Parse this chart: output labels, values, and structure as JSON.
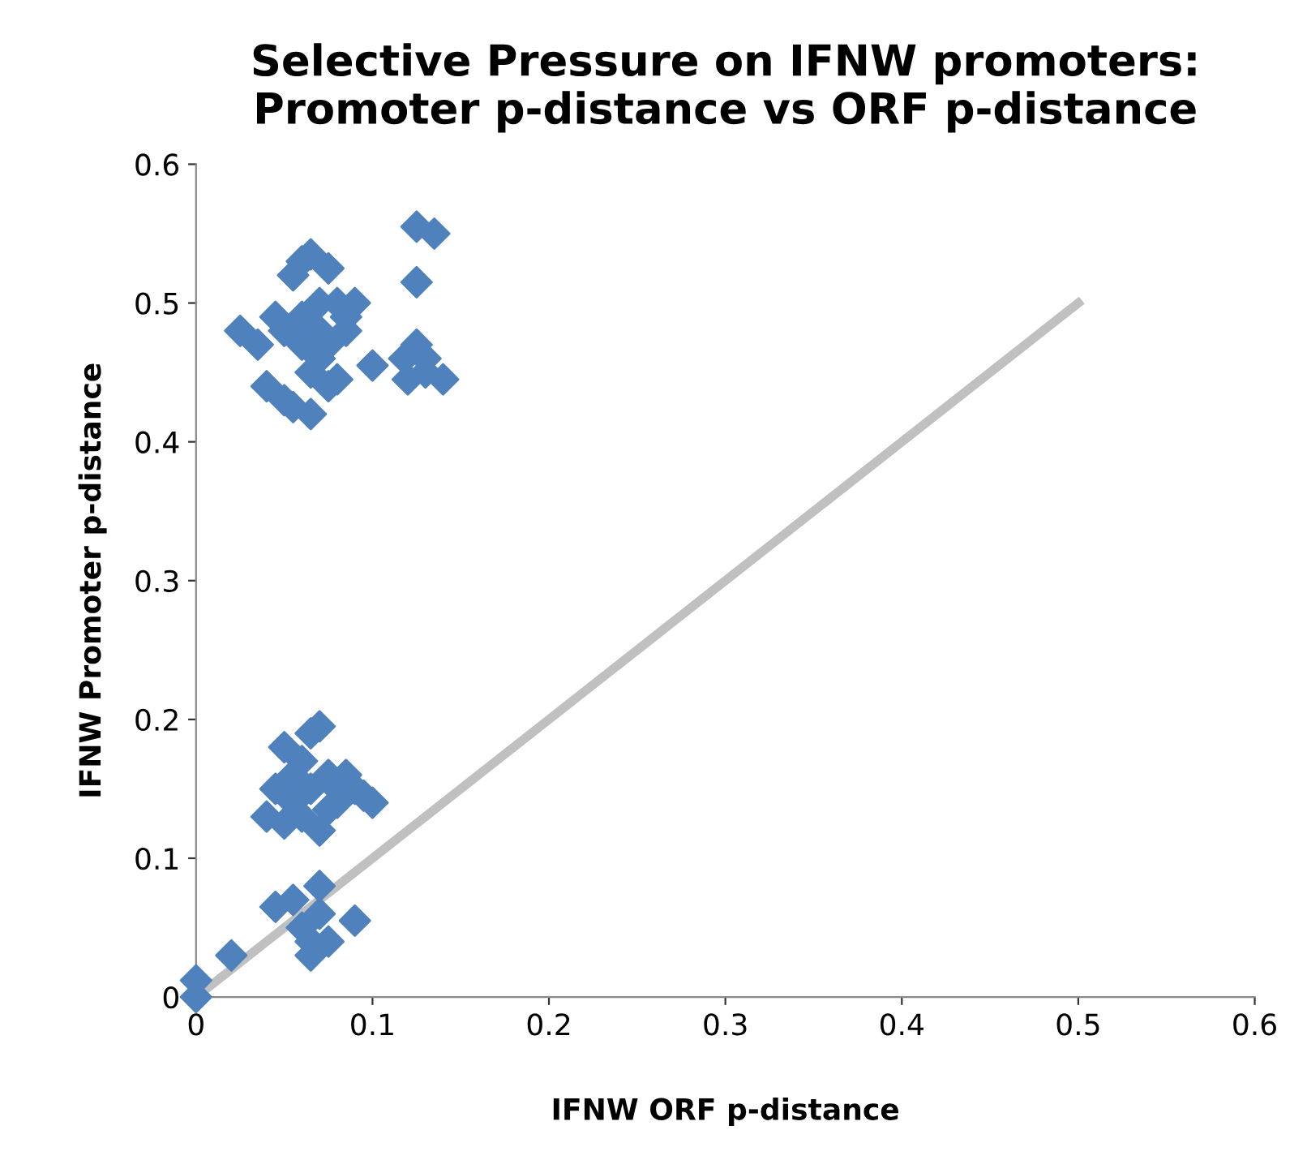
{
  "chart_data": {
    "type": "scatter",
    "title": "Selective Pressure on IFNW promoters:\nPromoter p-distance vs ORF p-distance",
    "xlabel": "IFNW ORF p-distance",
    "ylabel": "IFNW Promoter p-distance",
    "xlim": [
      0,
      0.6
    ],
    "ylim": [
      0,
      0.6
    ],
    "xticks": [
      {
        "value": 0,
        "label": "0"
      },
      0.1,
      0.2,
      0.3,
      0.4,
      0.5,
      0.6
    ],
    "yticks": [
      {
        "value": 0,
        "label": "0"
      },
      0.1,
      0.2,
      0.3,
      0.4,
      0.5,
      0.6
    ],
    "grid": false,
    "legend": false,
    "marker": "diamond",
    "series": [
      {
        "color": "#4f81bd",
        "x": [
          0.025,
          0.04,
          0.045,
          0.05,
          0.055,
          0.06,
          0.065,
          0.07,
          0.075,
          0.08,
          0.085,
          0.06,
          0.07,
          0.065,
          0.055,
          0.065,
          0.075,
          0.08,
          0.05,
          0.06,
          0.07,
          0.035,
          0.09,
          0.1,
          0.12,
          0.125,
          0.13,
          0.13,
          0.14,
          0.125,
          0.135,
          0.125,
          0.118,
          0.075,
          0.085,
          0.04,
          0.045,
          0.05,
          0.055,
          0.06,
          0.065,
          0.07,
          0.075,
          0.08,
          0.085,
          0.09,
          0.1,
          0.06,
          0.07,
          0.075,
          0.05,
          0.065,
          0.055,
          0.08,
          0.095,
          0.045,
          0.055,
          0.06,
          0.065,
          0.065,
          0.07,
          0.07,
          0.075,
          0.09,
          0.02,
          0,
          0
        ],
        "values": [
          0.48,
          0.44,
          0.49,
          0.43,
          0.52,
          0.53,
          0.535,
          0.5,
          0.525,
          0.5,
          0.49,
          0.47,
          0.46,
          0.45,
          0.425,
          0.42,
          0.44,
          0.445,
          0.48,
          0.49,
          0.48,
          0.47,
          0.5,
          0.455,
          0.445,
          0.47,
          0.46,
          0.45,
          0.445,
          0.555,
          0.55,
          0.515,
          0.46,
          0.47,
          0.48,
          0.13,
          0.15,
          0.18,
          0.16,
          0.17,
          0.19,
          0.195,
          0.16,
          0.15,
          0.16,
          0.15,
          0.14,
          0.13,
          0.12,
          0.135,
          0.125,
          0.15,
          0.14,
          0.14,
          0.145,
          0.065,
          0.07,
          0.05,
          0.04,
          0.03,
          0.08,
          0.06,
          0.04,
          0.055,
          0.03,
          0.012,
          0
        ]
      },
      {
        "type": "line",
        "color": "#c0c0c0",
        "x": [
          0,
          0.5
        ],
        "values": [
          0,
          0.5
        ],
        "marker": "none",
        "line_style": "solid"
      }
    ]
  }
}
